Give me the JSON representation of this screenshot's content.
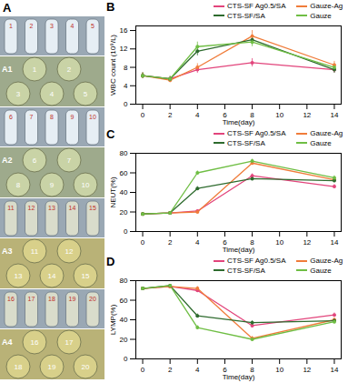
{
  "chart_data": [
    {
      "type": "line",
      "title": "B",
      "x_label": "Time(day)",
      "y_label": "WBC count (10⁹/L)",
      "x": [
        0,
        2,
        4,
        8,
        14
      ],
      "xlim": [
        -0.5,
        14.5
      ],
      "xticks": [
        0,
        2,
        4,
        6,
        8,
        10,
        12,
        14
      ],
      "ylim": [
        0,
        17
      ],
      "yticks": [
        0,
        4,
        8,
        12,
        16
      ],
      "legend": "top",
      "marker": "circle",
      "series": [
        {
          "name": "CTS-SF Ag0.5/SA",
          "color": "#e2457c",
          "values": [
            6.2,
            5.5,
            7.5,
            9.0,
            7.5
          ],
          "errors": [
            0.6,
            0.5,
            0.8,
            0.9,
            0.7
          ]
        },
        {
          "name": "Gauze-Ag",
          "color": "#f07c3a",
          "values": [
            6.2,
            5.2,
            8.0,
            14.8,
            8.5
          ],
          "errors": [
            0.6,
            0.5,
            0.8,
            1.2,
            0.8
          ]
        },
        {
          "name": "CTS-SF/SA",
          "color": "#2e6b2e",
          "values": [
            6.2,
            5.5,
            11.5,
            14.0,
            7.5
          ],
          "errors": [
            0.6,
            0.5,
            1.0,
            1.0,
            0.8
          ]
        },
        {
          "name": "Gauze",
          "color": "#6fbe44",
          "values": [
            6.2,
            5.5,
            12.5,
            13.5,
            8.0
          ],
          "errors": [
            0.6,
            0.5,
            1.0,
            1.0,
            0.8
          ]
        }
      ]
    },
    {
      "type": "line",
      "title": "C",
      "x_label": "Time(day)",
      "y_label": "NEUT(%)",
      "x": [
        0,
        2,
        4,
        8,
        14
      ],
      "xlim": [
        -0.5,
        14.5
      ],
      "xticks": [
        0,
        2,
        4,
        6,
        8,
        10,
        12,
        14
      ],
      "ylim": [
        0,
        80
      ],
      "yticks": [
        0,
        20,
        40,
        60,
        80
      ],
      "legend": "top",
      "marker": "circle",
      "series": [
        {
          "name": "CTS-SF Ag0.5/SA",
          "color": "#e2457c",
          "values": [
            18,
            19,
            21,
            57,
            46
          ],
          "errors": [
            1,
            1,
            1,
            2,
            2
          ]
        },
        {
          "name": "Gauze-Ag",
          "color": "#f07c3a",
          "values": [
            18,
            19,
            20,
            70,
            53
          ],
          "errors": [
            1,
            1,
            1,
            2,
            2
          ]
        },
        {
          "name": "CTS-SF/SA",
          "color": "#2e6b2e",
          "values": [
            18,
            19,
            44,
            54,
            52
          ],
          "errors": [
            1,
            1,
            2,
            2,
            2
          ]
        },
        {
          "name": "Gauze",
          "color": "#6fbe44",
          "values": [
            18,
            19,
            60,
            72,
            55
          ],
          "errors": [
            1,
            1,
            2,
            2,
            2
          ]
        }
      ]
    },
    {
      "type": "line",
      "title": "D",
      "x_label": "Time(day)",
      "y_label": "LYMP(%)",
      "x": [
        0,
        2,
        4,
        8,
        14
      ],
      "xlim": [
        -0.5,
        14.5
      ],
      "xticks": [
        0,
        2,
        4,
        6,
        8,
        10,
        12,
        14
      ],
      "ylim": [
        0,
        80
      ],
      "yticks": [
        0,
        20,
        40,
        60,
        80
      ],
      "legend": "top",
      "marker": "circle",
      "series": [
        {
          "name": "CTS-SF Ag0.5/SA",
          "color": "#e2457c",
          "values": [
            72,
            74,
            70,
            34,
            45
          ],
          "errors": [
            1,
            1,
            2,
            2,
            2
          ]
        },
        {
          "name": "Gauze-Ag",
          "color": "#f07c3a",
          "values": [
            72,
            74,
            72,
            21,
            40
          ],
          "errors": [
            1,
            1,
            2,
            2,
            2
          ]
        },
        {
          "name": "CTS-SF/SA",
          "color": "#2e6b2e",
          "values": [
            72,
            75,
            44,
            37,
            39
          ],
          "errors": [
            1,
            1,
            2,
            2,
            2
          ]
        },
        {
          "name": "Gauze",
          "color": "#6fbe44",
          "values": [
            72,
            75,
            32,
            20,
            38
          ],
          "errors": [
            1,
            1,
            2,
            2,
            2
          ]
        }
      ]
    }
  ],
  "panel_a": {
    "label": "A",
    "groups": [
      {
        "label": "A1",
        "tubes": [
          "1",
          "2",
          "3",
          "4",
          "5"
        ],
        "plates": [
          "1",
          "2",
          "3",
          "4",
          "5"
        ]
      },
      {
        "label": "A2",
        "tubes": [
          "6",
          "7",
          "8",
          "9",
          "10"
        ],
        "plates": [
          "6",
          "7",
          "8",
          "9",
          "10"
        ]
      },
      {
        "label": "A3",
        "tubes": [
          "11",
          "12",
          "13",
          "14",
          "15"
        ],
        "plates": [
          "11",
          "12",
          "13",
          "14",
          "15"
        ]
      },
      {
        "label": "A4",
        "tubes": [
          "16",
          "17",
          "18",
          "19",
          "20"
        ],
        "plates": [
          "16",
          "17",
          "18",
          "19",
          "20"
        ]
      }
    ]
  }
}
